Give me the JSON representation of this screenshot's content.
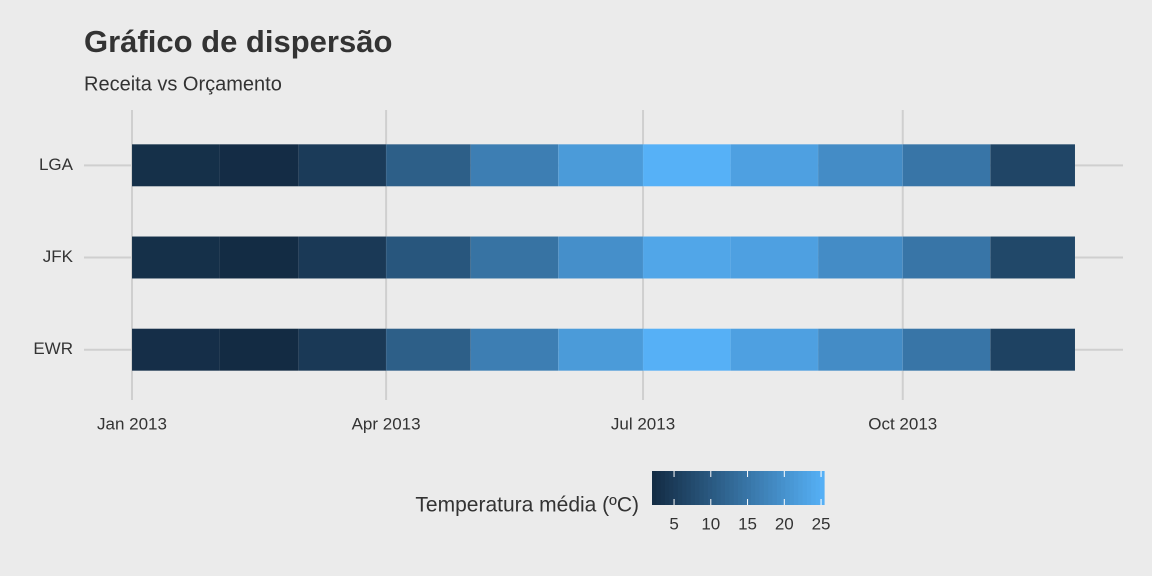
{
  "chart_data": {
    "type": "heatmap",
    "title": "Gráfico de dispersão",
    "subtitle": "Receita vs Orçamento",
    "x": [
      "2013-01-01",
      "2013-02-01",
      "2013-03-01",
      "2013-04-01",
      "2013-05-01",
      "2013-06-01",
      "2013-07-01",
      "2013-08-01",
      "2013-09-01",
      "2013-10-01",
      "2013-11-01"
    ],
    "categories": [
      "LGA",
      "JFK",
      "EWR"
    ],
    "series": [
      {
        "name": "LGA",
        "values": [
          2.8,
          2.2,
          4.8,
          11,
          16.5,
          21.5,
          25.4,
          22.5,
          19,
          15,
          6.5
        ]
      },
      {
        "name": "JFK",
        "values": [
          2.8,
          2.1,
          4.5,
          9.5,
          14.5,
          19.5,
          23.5,
          22.5,
          19,
          15,
          7
        ]
      },
      {
        "name": "EWR",
        "values": [
          2.6,
          2.0,
          4.5,
          11,
          16.5,
          21.5,
          25.3,
          22.5,
          19,
          15,
          6
        ]
      }
    ],
    "xlim": [
      "2012-12-15",
      "2013-12-18"
    ],
    "xticks": [
      {
        "value": "2013-01-01",
        "label": "Jan 2013"
      },
      {
        "value": "2013-04-01",
        "label": "Apr 2013"
      },
      {
        "value": "2013-07-01",
        "label": "Jul 2013"
      },
      {
        "value": "2013-10-01",
        "label": "Oct 2013"
      }
    ],
    "grid": true,
    "color_low": "#132B43",
    "color_high": "#56B1F7",
    "colorlim": [
      2.0,
      25.4
    ],
    "legend": {
      "title": "Temperatura média (ºC)",
      "ticks": [
        5,
        10,
        15,
        20,
        25
      ],
      "position": "bottom"
    }
  }
}
